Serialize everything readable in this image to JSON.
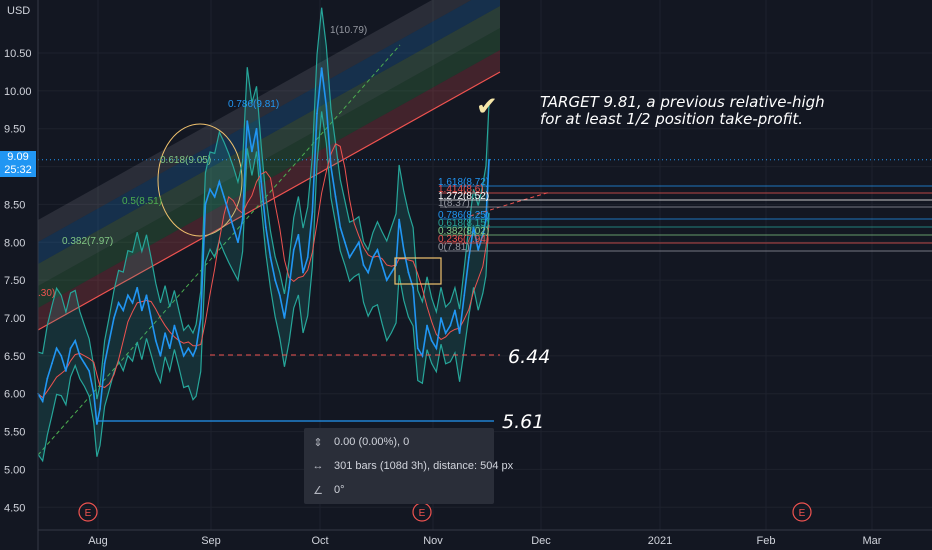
{
  "colors": {
    "background": "#131722",
    "price_line": "#2196f3",
    "bands": "#26a69a",
    "ma": "#ef5350",
    "grid": "#1e222d",
    "highlight_box": "#f0c26e",
    "price_tag_bg": "#2196f3"
  },
  "currency_badge": "USD",
  "current_price": {
    "price": "9.09",
    "countdown": "25:32"
  },
  "annotations": {
    "target": "TARGET 9.81, a previous relative-high\nfor at least 1/2 position take-profit.",
    "checkmark_icon": "check-icon",
    "level_644": "6.44",
    "level_561": "5.61"
  },
  "fib_channel_labels": [
    {
      "text": "1(10.79)",
      "color": "#9598a1"
    },
    {
      "text": "0.786(9.81)",
      "color": "#2196f3"
    },
    {
      "text": "0.618(9.05)",
      "color": "#81c784"
    },
    {
      "text": "0.5(8.51)",
      "color": "#4caf50"
    },
    {
      "text": "0.382(7.97)",
      "color": "#81c784"
    },
    {
      "text": ".30)",
      "color": "#ef5350"
    }
  ],
  "fib_retrace_labels": [
    {
      "text": "1.618(8.72)",
      "color": "#2196f3"
    },
    {
      "text": "1.414(8.6)",
      "color": "#ef5350"
    },
    {
      "text": "1.272(8.52)",
      "color": "#ffffff"
    },
    {
      "text": "1(8.37)",
      "color": "#9598a1"
    },
    {
      "text": "0.786(8.25)",
      "color": "#2196f3"
    },
    {
      "text": "0.618(8.15)",
      "color": "#26a69a"
    },
    {
      "text": "0.382(8.02)",
      "color": "#81c784"
    },
    {
      "text": "0.236(7.94)",
      "color": "#ef5350"
    },
    {
      "text": "0(7.81)",
      "color": "#9598a1"
    }
  ],
  "tooltip": {
    "price_range": "0.00 (0.00%), 0",
    "bars_range": "301 bars (108d 3h), distance: 504 px",
    "angle": "0°"
  },
  "earnings_marker": "E",
  "chart_data": {
    "type": "line",
    "ylabel": "",
    "xlabel": "",
    "y_ticks": [
      "10.50",
      "10.00",
      "9.50",
      "9.00",
      "8.50",
      "8.00",
      "7.50",
      "7.00",
      "6.50",
      "6.00",
      "5.50",
      "5.00",
      "4.50"
    ],
    "x_ticks": [
      "Aug",
      "Sep",
      "Oct",
      "Nov",
      "Dec",
      "2021",
      "Feb",
      "Mar"
    ],
    "ylim": [
      4.2,
      11.2
    ],
    "grid": true,
    "series": [
      {
        "values": [
          [
            0,
            6.0
          ],
          [
            3,
            5.9
          ],
          [
            6,
            6.2
          ],
          [
            9,
            6.4
          ],
          [
            12,
            6.6
          ],
          [
            15,
            6.5
          ],
          [
            18,
            6.3
          ],
          [
            21,
            6.6
          ],
          [
            24,
            6.7
          ],
          [
            27,
            6.5
          ],
          [
            30,
            6.4
          ],
          [
            33,
            6.3
          ],
          [
            36,
            6.0
          ],
          [
            38,
            5.6
          ],
          [
            40,
            5.8
          ],
          [
            43,
            6.4
          ],
          [
            46,
            6.7
          ],
          [
            49,
            7.0
          ],
          [
            52,
            7.2
          ],
          [
            55,
            7.1
          ],
          [
            58,
            7.3
          ],
          [
            61,
            7.2
          ],
          [
            64,
            7.4
          ],
          [
            67,
            7.1
          ],
          [
            70,
            7.3
          ],
          [
            73,
            7.0
          ],
          [
            76,
            6.7
          ],
          [
            79,
            6.5
          ],
          [
            82,
            6.8
          ],
          [
            85,
            6.6
          ],
          [
            88,
            6.9
          ],
          [
            91,
            6.7
          ],
          [
            94,
            6.5
          ],
          [
            97,
            6.6
          ],
          [
            100,
            6.5
          ],
          [
            102,
            6.6
          ],
          [
            105,
            7.0
          ],
          [
            108,
            8.5
          ],
          [
            111,
            8.7
          ],
          [
            114,
            8.6
          ],
          [
            117,
            8.8
          ],
          [
            120,
            8.6
          ],
          [
            123,
            8.4
          ],
          [
            126,
            8.2
          ],
          [
            129,
            8.0
          ],
          [
            132,
            8.3
          ],
          [
            135,
            9.6
          ],
          [
            138,
            9.2
          ],
          [
            141,
            9.5
          ],
          [
            144,
            8.8
          ],
          [
            147,
            8.2
          ],
          [
            150,
            7.8
          ],
          [
            153,
            7.5
          ],
          [
            156,
            7.3
          ],
          [
            159,
            7.0
          ],
          [
            162,
            7.4
          ],
          [
            165,
            7.9
          ],
          [
            168,
            8.1
          ],
          [
            171,
            7.6
          ],
          [
            174,
            7.8
          ],
          [
            177,
            8.4
          ],
          [
            180,
            9.7
          ],
          [
            183,
            10.3
          ],
          [
            186,
            9.8
          ],
          [
            189,
            9.0
          ],
          [
            192,
            8.6
          ],
          [
            195,
            8.2
          ],
          [
            198,
            8.0
          ],
          [
            201,
            7.8
          ],
          [
            204,
            7.9
          ],
          [
            207,
            8.0
          ],
          [
            210,
            7.7
          ],
          [
            213,
            7.6
          ],
          [
            216,
            7.8
          ],
          [
            219,
            7.9
          ],
          [
            222,
            7.7
          ],
          [
            225,
            7.5
          ],
          [
            228,
            7.6
          ],
          [
            231,
            7.7
          ],
          [
            233,
            8.3
          ],
          [
            236,
            7.9
          ],
          [
            239,
            7.6
          ],
          [
            242,
            7.4
          ],
          [
            245,
            6.6
          ],
          [
            248,
            6.5
          ],
          [
            251,
            6.9
          ],
          [
            254,
            6.7
          ],
          [
            257,
            6.6
          ],
          [
            260,
            7.0
          ],
          [
            263,
            6.8
          ],
          [
            266,
            6.9
          ],
          [
            269,
            7.1
          ],
          [
            272,
            6.8
          ],
          [
            275,
            7.3
          ],
          [
            278,
            7.8
          ],
          [
            281,
            8.2
          ],
          [
            284,
            7.9
          ],
          [
            287,
            8.1
          ],
          [
            289,
            8.3
          ],
          [
            291,
            9.09
          ]
        ]
      }
    ]
  }
}
